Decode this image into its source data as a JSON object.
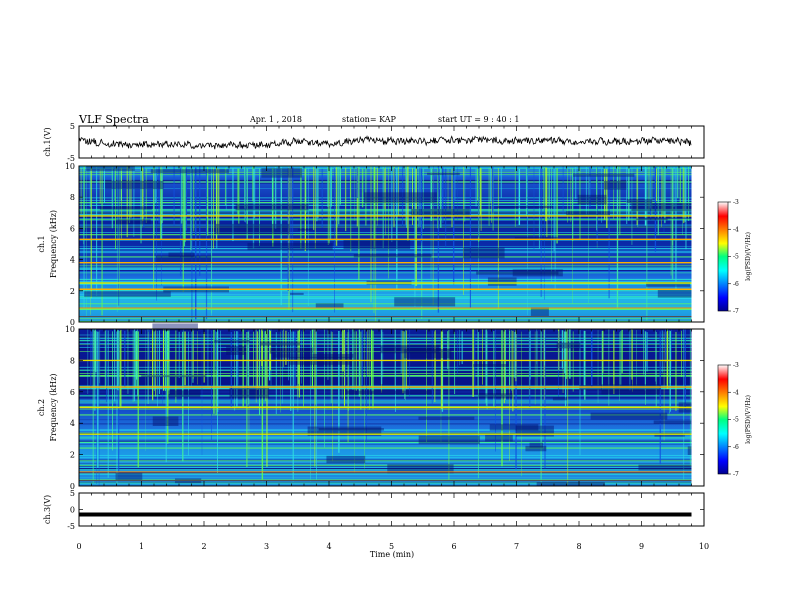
{
  "header": {
    "title": "VLF Spectra",
    "date": "Apr. 1  , 2018",
    "station": "station= KAP",
    "start_time": "start  UT  =   9 : 40 : 1"
  },
  "chart_data": [
    {
      "type": "line",
      "panel": "ch1-waveform",
      "ylabel": "ch.1(V)",
      "ylim": [
        -5,
        5
      ],
      "yticks": [
        "5",
        "-5"
      ],
      "x": [
        0.0,
        0.5,
        1.0,
        1.5,
        2.0,
        2.5,
        3.0,
        3.5,
        4.0,
        4.5,
        5.0,
        5.5,
        6.0,
        6.5,
        7.0,
        7.5,
        8.0,
        8.5,
        9.0,
        9.5,
        9.8
      ],
      "values": [
        0.6,
        -0.6,
        -0.8,
        -0.7,
        -1.0,
        -1.1,
        -0.9,
        0.2,
        -0.6,
        0.6,
        0.4,
        0.2,
        0.6,
        0.7,
        0.3,
        0.6,
        0.0,
        0.3,
        0.4,
        0.5,
        -0.3
      ]
    },
    {
      "type": "heatmap",
      "panel": "ch1-spectrogram",
      "ylabel_top": "ch.1",
      "ylabel": "Frequency (kHz)",
      "ylim": [
        0,
        10
      ],
      "yticks": [
        "0",
        "2",
        "4",
        "6",
        "8",
        "10"
      ],
      "colorbar": {
        "label": "log(PSD)(V²/Hz)",
        "range": [
          -7,
          -3
        ],
        "ticks": [
          "-7",
          "-6",
          "-5",
          "-4",
          "-3"
        ]
      },
      "bands": [
        {
          "freq_khz": 3.8,
          "color": "#ffb000"
        },
        {
          "freq_khz": 2.5,
          "color": "#d8e800"
        },
        {
          "freq_khz": 2.1,
          "color": "#ffb000"
        },
        {
          "freq_khz": 6.8,
          "color": "#e8e000"
        },
        {
          "freq_khz": 5.3,
          "color": "#ffb000"
        }
      ]
    },
    {
      "type": "heatmap",
      "panel": "ch2-spectrogram",
      "ylabel_top": "ch.2",
      "ylabel": "Frequency (kHz)",
      "ylim": [
        0,
        10
      ],
      "yticks": [
        "0",
        "2",
        "4",
        "6",
        "8",
        "10"
      ],
      "colorbar": {
        "label": "log(PSD)(V²/Hz)",
        "range": [
          -7,
          -3
        ],
        "ticks": [
          "-7",
          "-6",
          "-5",
          "-4",
          "-3"
        ]
      },
      "bands": [
        {
          "freq_khz": 8.0,
          "color": "#e8e000"
        },
        {
          "freq_khz": 6.3,
          "color": "#ffb000"
        },
        {
          "freq_khz": 3.3,
          "color": "#d8e800"
        },
        {
          "freq_khz": 5.0,
          "color": "#e8e000"
        }
      ]
    },
    {
      "type": "line",
      "panel": "ch3-waveform",
      "ylabel": "ch.3(V)",
      "ylim": [
        -5,
        5
      ],
      "yticks": [
        "5",
        "0",
        "-5"
      ],
      "x": [
        0.0,
        9.8
      ],
      "values": [
        -1.5,
        -1.5
      ]
    }
  ],
  "xaxis": {
    "label": "Time (min)",
    "range": [
      0,
      10
    ],
    "ticks": [
      "0",
      "1",
      "2",
      "3",
      "4",
      "5",
      "6",
      "7",
      "8",
      "9",
      "10"
    ]
  }
}
